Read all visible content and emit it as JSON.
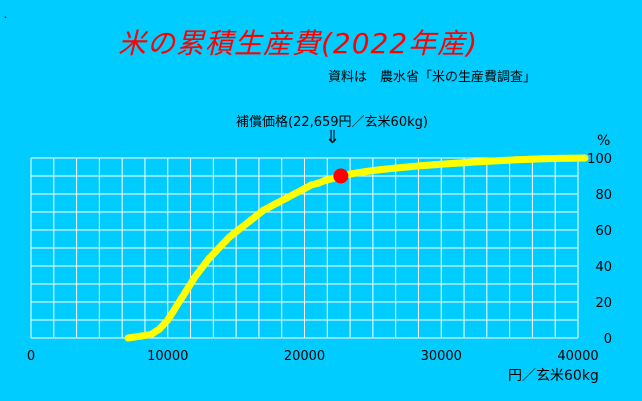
{
  "corner_mark": "˛",
  "chart_data": {
    "type": "line",
    "title": "米の累積生産費(2022年産)",
    "source": "資料は　農水省「米の生産費調査」",
    "xlabel": "円／玄米60kg",
    "ylabel": "%",
    "xlim": [
      0,
      40000
    ],
    "ylim": [
      0,
      100
    ],
    "x_ticks": [
      {
        "value": 0,
        "label": "0"
      },
      {
        "value": 10000,
        "label": "10000"
      },
      {
        "value": 20000,
        "label": "20000"
      },
      {
        "value": 30000,
        "label": "30000"
      },
      {
        "value": 40000,
        "label": "40000"
      }
    ],
    "y_ticks": [
      {
        "value": 0,
        "label": "0"
      },
      {
        "value": 20,
        "label": "20"
      },
      {
        "value": 40,
        "label": "40"
      },
      {
        "value": 60,
        "label": "60"
      },
      {
        "value": 80,
        "label": "80"
      },
      {
        "value": 100,
        "label": "100"
      }
    ],
    "grid": true,
    "series": [
      {
        "color": "#ffff00",
        "x": [
          7100,
          8000,
          8800,
          9400,
          10000,
          10500,
          11000,
          11500,
          12000,
          12500,
          13000,
          13500,
          14000,
          14500,
          15000,
          15500,
          16000,
          16500,
          17000,
          17500,
          18000,
          18500,
          19000,
          19500,
          20000,
          20500,
          21000,
          21500,
          22000,
          22659,
          23500,
          24500,
          25500,
          26500,
          27500,
          28500,
          29500,
          30500,
          31500,
          32500,
          33500,
          34500,
          35500,
          36500,
          37500,
          38500,
          39500,
          40500
        ],
        "y": [
          0,
          1,
          2,
          5,
          10,
          16,
          22,
          28,
          34,
          39,
          44,
          48,
          52,
          56,
          59,
          62,
          65,
          68,
          71,
          73,
          75,
          77,
          79,
          81,
          83,
          85,
          86,
          87.5,
          88.5,
          90,
          91.3,
          92.5,
          93.5,
          94.3,
          95,
          95.7,
          96.3,
          96.8,
          97.3,
          97.8,
          98.2,
          98.6,
          99,
          99.3,
          99.6,
          99.8,
          99.9,
          100
        ]
      }
    ],
    "highlight": {
      "x": 22659,
      "y": 90,
      "color": "#ff0000",
      "label": "補償価格(22,659円／玄米60kg)",
      "arrow": "⇓"
    }
  }
}
